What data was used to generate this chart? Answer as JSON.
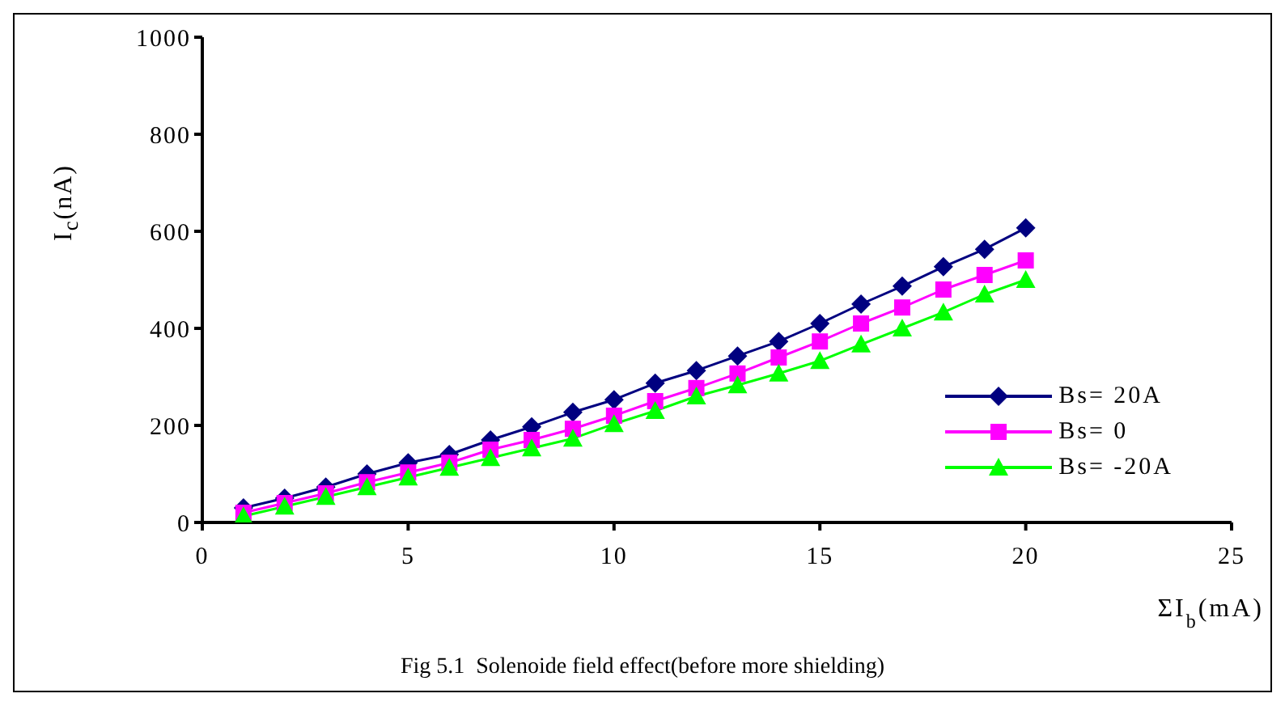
{
  "chart_data": {
    "type": "line",
    "xlabel": "ΣI$_{b}$(mA)",
    "ylabel": "I$_{c}$(nA)",
    "annotations": [
      "Fig 5.1  Solenoide field effect(before more shielding)"
    ],
    "x": [
      1,
      2,
      3,
      4,
      5,
      6,
      7,
      8,
      9,
      10,
      11,
      12,
      13,
      14,
      15,
      16,
      17,
      18,
      19,
      20
    ],
    "xlim": [
      0,
      25
    ],
    "xticks": [
      0,
      5,
      10,
      15,
      20,
      25
    ],
    "ylim": [
      0,
      1000
    ],
    "yticks": [
      0,
      200,
      400,
      600,
      800,
      1000
    ],
    "grid": false,
    "legend": "bottom right",
    "line_style": "solid",
    "series": [
      {
        "name": "Bs=  20A",
        "color": "#000080",
        "marker": "diamond",
        "values": [
          30,
          50,
          73,
          100,
          123,
          140,
          170,
          197,
          227,
          253,
          287,
          313,
          343,
          373,
          410,
          450,
          487,
          527,
          563,
          607
        ]
      },
      {
        "name": "Bs=  0",
        "color": "#ff00ff",
        "marker": "square",
        "values": [
          20,
          40,
          60,
          83,
          103,
          123,
          150,
          170,
          193,
          220,
          250,
          277,
          307,
          340,
          373,
          410,
          443,
          480,
          510,
          540
        ]
      },
      {
        "name": "Bs=  -20A",
        "color": "#00ff00",
        "marker": "triangle",
        "values": [
          13,
          33,
          53,
          73,
          93,
          113,
          133,
          153,
          173,
          203,
          230,
          260,
          283,
          307,
          333,
          367,
          400,
          433,
          470,
          500
        ]
      }
    ]
  }
}
